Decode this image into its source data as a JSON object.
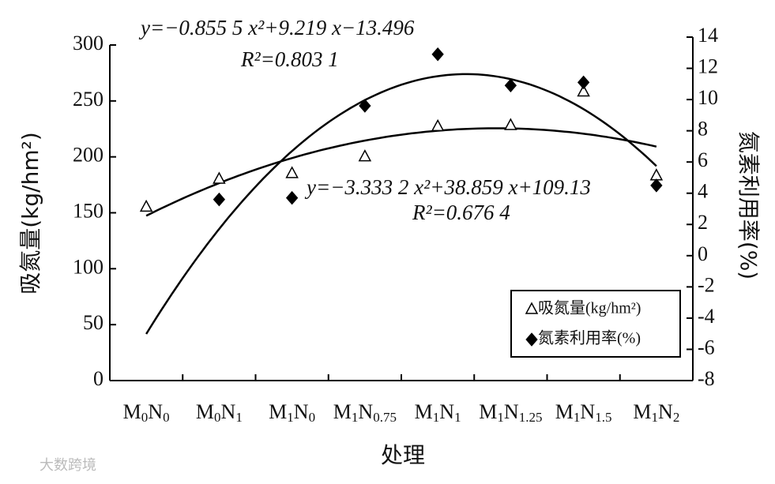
{
  "chart_data": {
    "type": "scatter",
    "categories": [
      "M0N0",
      "M0N1",
      "M1N0",
      "M1N0.75",
      "M1N1",
      "M1N1.25",
      "M1N1.5",
      "M1N2"
    ],
    "series": [
      {
        "name": "吸氮量(kg/hm²)",
        "color": "#000000",
        "marker": "triangle",
        "values": [
          155,
          180,
          185,
          200,
          227,
          228,
          258,
          183
        ]
      },
      {
        "name": "氮素利用率(%)",
        "color": "#000000",
        "marker": "diamond",
        "axis": "y2",
        "values": [
          null,
          3.6,
          3.7,
          9.6,
          12.9,
          10.9,
          11.1,
          4.5
        ]
      }
    ],
    "trendline": "quadratic",
    "annotations": [
      "y=−0.855 5 x²+9.219 x−13.496",
      "R²=0.803 1",
      "y=−3.333 2 x²+38.859 x+109.13",
      "R²=0.676 4"
    ],
    "xlabel": "处理",
    "ylabel": "吸氮量(kg/hm²)",
    "y2label": "氮素利用率(%)",
    "ylim": [
      0,
      300
    ],
    "yticks": [
      0,
      50,
      100,
      150,
      200,
      250,
      300
    ],
    "y2lim": [
      -8,
      14
    ],
    "y2ticks": [
      -8,
      -6,
      -4,
      -2,
      0,
      2,
      4,
      6,
      8,
      10,
      12,
      14
    ],
    "legend": "lower right",
    "watermark": "大数跨境"
  }
}
